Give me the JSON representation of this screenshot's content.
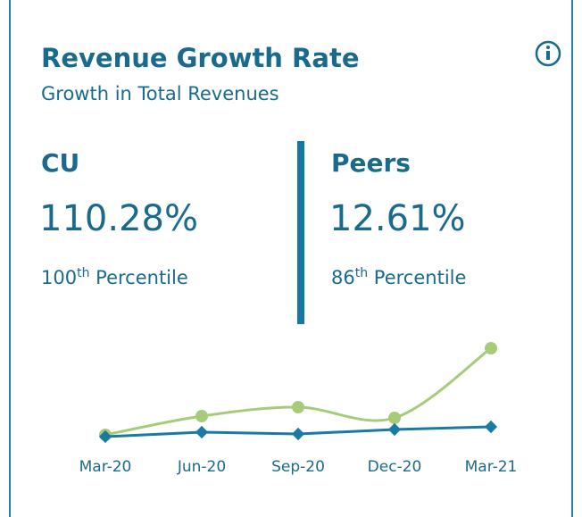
{
  "header": {
    "title": "Revenue Growth Rate",
    "subtitle": "Growth in Total Revenues"
  },
  "stats": [
    {
      "label": "CU",
      "value": "110.28%",
      "rank": "100",
      "suffix": "th",
      "rank_label": "Percentile"
    },
    {
      "label": "Peers",
      "value": "12.61%",
      "rank": "86",
      "suffix": "th",
      "rank_label": "Percentile"
    }
  ],
  "chart_data": {
    "type": "line",
    "categories": [
      "Mar-20",
      "Jun-20",
      "Sep-20",
      "Dec-20",
      "Mar-21"
    ],
    "series": [
      {
        "color": "#a6cc7a",
        "values": [
          3,
          24,
          34,
          22,
          100
        ],
        "marker": "circle",
        "smooth": true
      },
      {
        "color": "#1a7aa3",
        "values": [
          1,
          6,
          4,
          9,
          12
        ],
        "marker": "diamond",
        "smooth": false
      }
    ],
    "ylim": [
      0,
      100
    ]
  }
}
